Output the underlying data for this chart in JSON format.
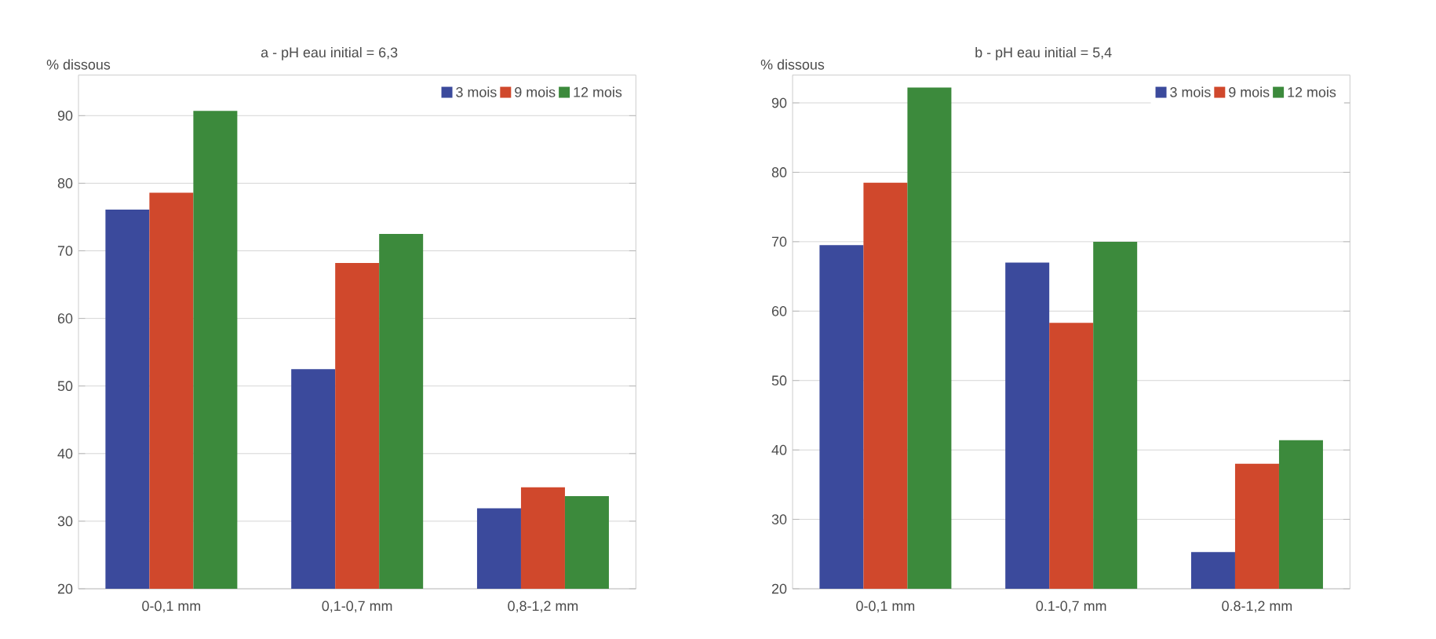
{
  "chart_data": [
    {
      "type": "bar",
      "title": "a - pH eau initial = 6,3",
      "ylabel": "% dissous",
      "categories": [
        "0-0,1 mm",
        "0,1-0,7 mm",
        "0,8-1,2 mm"
      ],
      "series": [
        {
          "name": "3 mois",
          "color": "#3b4a9c",
          "values": [
            76.1,
            52.5,
            31.9
          ]
        },
        {
          "name": "9 mois",
          "color": "#d0482c",
          "values": [
            78.6,
            68.2,
            35.0
          ]
        },
        {
          "name": "12 mois",
          "color": "#3c8a3c",
          "values": [
            90.7,
            72.5,
            33.7
          ]
        }
      ],
      "ylim": [
        20,
        96
      ],
      "yticks": [
        20,
        30,
        40,
        50,
        60,
        70,
        80,
        90
      ],
      "grid": "y",
      "legend": "top right"
    },
    {
      "type": "bar",
      "title": "b - pH eau initial = 5,4",
      "ylabel": "% dissous",
      "categories": [
        "0-0,1 mm",
        "0.1-0,7 mm",
        "0.8-1,2 mm"
      ],
      "series": [
        {
          "name": "3 mois",
          "color": "#3b4a9c",
          "values": [
            69.5,
            67.0,
            25.3
          ]
        },
        {
          "name": "9 mois",
          "color": "#d0482c",
          "values": [
            78.5,
            58.3,
            38.0
          ]
        },
        {
          "name": "12 mois",
          "color": "#3c8a3c",
          "values": [
            92.2,
            70.0,
            41.4
          ]
        }
      ],
      "ylim": [
        20,
        94
      ],
      "yticks": [
        20,
        30,
        40,
        50,
        60,
        70,
        80,
        90
      ],
      "grid": "y",
      "legend": "top right"
    }
  ]
}
